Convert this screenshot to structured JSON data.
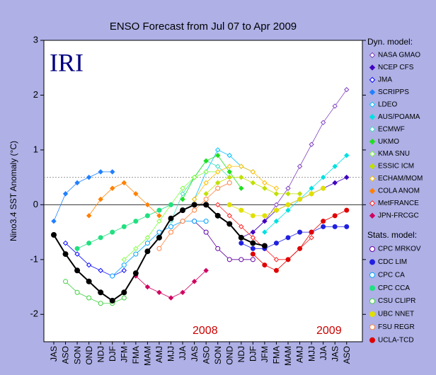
{
  "chart_data": {
    "type": "line",
    "title": "ENSO Forecast from Jul 07 to Apr 2009",
    "y_label": "Nino3.4 SST Anomaly (°C)",
    "categories": [
      "JAS",
      "ASO",
      "SON",
      "OND",
      "NDJ",
      "DJF",
      "JFM",
      "FMA",
      "MAM",
      "AMJ",
      "MJJ",
      "JJA",
      "JAS",
      "ASO",
      "SON",
      "OND",
      "NDJ",
      "DJF",
      "JFM",
      "FMA",
      "MAM",
      "AMJ",
      "MJJ",
      "JJA",
      "JAS",
      "ASO"
    ],
    "ylim": [
      -2.5,
      3
    ],
    "yticks": [
      -2,
      -1,
      0,
      1,
      2,
      3
    ],
    "reference_lines": [
      {
        "value": 0.5,
        "style": "dashed"
      },
      {
        "value": 0,
        "style": "solid"
      }
    ],
    "annotations": [
      {
        "text": "IRI",
        "color": "#000080"
      },
      {
        "text": "2008",
        "color": "#cc0000"
      },
      {
        "text": "2009",
        "color": "#cc0000"
      }
    ],
    "legend_headers": [
      "Dyn. model:",
      "Stats. model:"
    ],
    "observed": {
      "color": "#000000",
      "values": [
        -0.55,
        -0.9,
        -1.2,
        -1.4,
        -1.6,
        -1.75,
        -1.6,
        -1.25,
        -0.85,
        -0.6,
        -0.25,
        -0.1,
        0.0,
        0.0,
        -0.2,
        -0.35,
        -0.6,
        -0.7,
        -0.75,
        null,
        null,
        null,
        null,
        null,
        null,
        null
      ]
    },
    "series": [
      {
        "name": "NASA GMAO",
        "color": "#8040c0",
        "marker": "open-diamond",
        "group": 0,
        "values": [
          null,
          null,
          null,
          null,
          null,
          null,
          null,
          null,
          null,
          null,
          null,
          null,
          null,
          null,
          null,
          null,
          null,
          -0.5,
          -0.3,
          0.0,
          0.3,
          0.7,
          1.1,
          1.5,
          1.8,
          2.1
        ]
      },
      {
        "name": "NCEP CFS",
        "color": "#4000c0",
        "marker": "diamond",
        "group": 0,
        "values": [
          null,
          null,
          null,
          null,
          null,
          null,
          null,
          null,
          null,
          null,
          null,
          null,
          null,
          null,
          null,
          null,
          -0.6,
          -0.5,
          -0.3,
          -0.1,
          0.0,
          0.1,
          0.2,
          0.3,
          0.4,
          0.5
        ]
      },
      {
        "name": "JMA",
        "color": "#0000ff",
        "marker": "open-diamond",
        "group": 0,
        "values": [
          null,
          -0.7,
          -0.9,
          -1.1,
          -1.2,
          -1.3,
          -1.2,
          null,
          null,
          null,
          null,
          null,
          null,
          null,
          null,
          null,
          null,
          null,
          null,
          null,
          null,
          null,
          null,
          null,
          null,
          null
        ]
      },
      {
        "name": "SCRIPPS",
        "color": "#2080ff",
        "marker": "diamond",
        "group": 0,
        "values": [
          -0.3,
          0.2,
          0.4,
          0.5,
          0.6,
          0.6,
          null,
          null,
          null,
          null,
          null,
          null,
          null,
          null,
          null,
          null,
          null,
          null,
          null,
          null,
          null,
          null,
          null,
          null,
          null,
          null
        ]
      },
      {
        "name": "LDEO",
        "color": "#00c0ff",
        "marker": "open-diamond",
        "group": 0,
        "values": [
          null,
          null,
          null,
          null,
          null,
          null,
          null,
          null,
          null,
          null,
          null,
          null,
          0.1,
          0.6,
          1.0,
          0.9,
          0.7,
          0.6,
          null,
          null,
          null,
          null,
          null,
          null,
          null,
          null
        ]
      },
      {
        "name": "AUS/POAMA",
        "color": "#00e0e0",
        "marker": "diamond",
        "group": 0,
        "values": [
          null,
          null,
          null,
          null,
          null,
          null,
          null,
          null,
          null,
          null,
          null,
          null,
          null,
          null,
          null,
          null,
          null,
          null,
          -0.5,
          -0.3,
          -0.1,
          0.1,
          0.3,
          0.5,
          0.7,
          0.9
        ]
      },
      {
        "name": "ECMWF",
        "color": "#40e0c0",
        "marker": "open-diamond",
        "group": 0,
        "values": [
          null,
          null,
          null,
          null,
          null,
          null,
          null,
          null,
          null,
          null,
          -0.3,
          0.2,
          0.5,
          0.8,
          0.7,
          0.5,
          null,
          null,
          null,
          null,
          null,
          null,
          null,
          null,
          null,
          null
        ]
      },
      {
        "name": "UKMO",
        "color": "#20e020",
        "marker": "diamond",
        "group": 0,
        "values": [
          null,
          null,
          null,
          null,
          null,
          null,
          null,
          null,
          null,
          null,
          null,
          0.1,
          0.5,
          0.8,
          0.9,
          0.6,
          0.3,
          null,
          null,
          null,
          null,
          null,
          null,
          null,
          null,
          null
        ]
      },
      {
        "name": "KMA SNU",
        "color": "#80ff40",
        "marker": "open-diamond",
        "group": 0,
        "values": [
          null,
          null,
          null,
          null,
          null,
          null,
          -1.0,
          -0.8,
          -0.6,
          -0.3,
          0.0,
          0.3,
          0.5,
          0.6,
          0.6,
          null,
          null,
          null,
          null,
          null,
          null,
          null,
          null,
          null,
          null,
          null
        ]
      },
      {
        "name": "ESSIC ICM",
        "color": "#c0e000",
        "marker": "diamond",
        "group": 0,
        "values": [
          null,
          null,
          null,
          null,
          null,
          null,
          null,
          null,
          null,
          null,
          null,
          null,
          null,
          0.2,
          0.4,
          0.5,
          0.5,
          0.4,
          0.3,
          0.2,
          0.2,
          0.2,
          null,
          null,
          null,
          null
        ]
      },
      {
        "name": "ECHAM/MOM",
        "color": "#ffc000",
        "marker": "open-diamond",
        "group": 0,
        "values": [
          null,
          null,
          null,
          null,
          null,
          null,
          null,
          null,
          null,
          null,
          null,
          null,
          0.1,
          0.4,
          0.6,
          0.7,
          0.7,
          0.6,
          0.4,
          0.3,
          null,
          null,
          null,
          null,
          null,
          null
        ]
      },
      {
        "name": "COLA ANOM",
        "color": "#ff8000",
        "marker": "diamond",
        "group": 0,
        "values": [
          null,
          null,
          null,
          -0.2,
          0.1,
          0.3,
          0.4,
          0.2,
          0.0,
          -0.2,
          null,
          null,
          null,
          null,
          null,
          null,
          null,
          null,
          null,
          null,
          null,
          null,
          null,
          null,
          null,
          null
        ]
      },
      {
        "name": "MetFRANCE",
        "color": "#ff2020",
        "marker": "open-diamond",
        "group": 0,
        "values": [
          null,
          null,
          null,
          null,
          null,
          null,
          null,
          null,
          null,
          null,
          null,
          null,
          null,
          null,
          0.0,
          -0.2,
          -0.4,
          -0.6,
          -0.8,
          -1.0,
          -1.0,
          -0.8,
          -0.6,
          null,
          null,
          null
        ]
      },
      {
        "name": "JPN-FRCGC",
        "color": "#d00060",
        "marker": "diamond",
        "group": 0,
        "values": [
          null,
          null,
          null,
          null,
          null,
          null,
          null,
          -1.3,
          -1.5,
          -1.6,
          -1.7,
          -1.6,
          -1.4,
          -1.2,
          null,
          null,
          null,
          null,
          null,
          null,
          null,
          null,
          null,
          null,
          null,
          null
        ]
      },
      {
        "name": "CPC MRKOV",
        "color": "#6000a0",
        "marker": "open-circle",
        "group": 1,
        "values": [
          null,
          null,
          null,
          null,
          null,
          null,
          null,
          null,
          null,
          null,
          null,
          null,
          -0.3,
          -0.5,
          -0.8,
          -1.0,
          -1.0,
          -1.0,
          null,
          null,
          null,
          null,
          null,
          null,
          null,
          null
        ]
      },
      {
        "name": "CDC LIM",
        "color": "#2020e0",
        "marker": "circle",
        "group": 1,
        "values": [
          null,
          null,
          null,
          null,
          null,
          null,
          null,
          null,
          null,
          null,
          null,
          null,
          null,
          null,
          null,
          null,
          -0.7,
          -0.8,
          -0.8,
          -0.7,
          -0.6,
          -0.5,
          -0.5,
          -0.4,
          -0.4,
          -0.4
        ]
      },
      {
        "name": "CPC CA",
        "color": "#00a0ff",
        "marker": "open-circle",
        "group": 1,
        "values": [
          null,
          null,
          null,
          null,
          null,
          -1.3,
          -1.1,
          -0.9,
          -0.7,
          -0.5,
          -0.4,
          -0.3,
          -0.3,
          -0.3,
          null,
          null,
          null,
          null,
          null,
          null,
          null,
          null,
          null,
          null,
          null,
          null
        ]
      },
      {
        "name": "CPC CCA",
        "color": "#20e080",
        "marker": "circle",
        "group": 1,
        "values": [
          null,
          null,
          -0.8,
          -0.7,
          -0.6,
          -0.5,
          -0.4,
          -0.3,
          -0.2,
          -0.1,
          0.0,
          null,
          null,
          null,
          null,
          null,
          null,
          null,
          null,
          null,
          null,
          null,
          null,
          null,
          null,
          null
        ]
      },
      {
        "name": "CSU CLIPR",
        "color": "#40d040",
        "marker": "open-circle",
        "group": 1,
        "values": [
          null,
          -1.4,
          -1.6,
          -1.7,
          -1.8,
          -1.8,
          -1.7,
          null,
          null,
          null,
          null,
          null,
          null,
          null,
          null,
          null,
          null,
          null,
          null,
          null,
          null,
          null,
          null,
          null,
          null,
          null
        ]
      },
      {
        "name": "UBC NNET",
        "color": "#e0e000",
        "marker": "circle",
        "group": 1,
        "values": [
          null,
          null,
          null,
          null,
          null,
          null,
          null,
          null,
          null,
          null,
          null,
          null,
          null,
          null,
          null,
          0.0,
          -0.1,
          -0.2,
          -0.2,
          -0.1,
          0.0,
          0.1,
          0.2,
          0.3,
          null,
          null
        ]
      },
      {
        "name": "FSU REGR",
        "color": "#ff8040",
        "marker": "open-circle",
        "group": 1,
        "values": [
          null,
          null,
          null,
          null,
          null,
          null,
          null,
          null,
          null,
          -0.8,
          -0.5,
          -0.3,
          -0.1,
          0.1,
          0.3,
          0.4,
          null,
          null,
          null,
          null,
          null,
          null,
          null,
          null,
          null,
          null
        ]
      },
      {
        "name": "UCLA-TCD",
        "color": "#e00000",
        "marker": "circle",
        "group": 1,
        "values": [
          null,
          null,
          null,
          null,
          null,
          null,
          null,
          null,
          null,
          null,
          null,
          null,
          null,
          null,
          null,
          null,
          null,
          -0.9,
          -1.1,
          -1.2,
          -1.0,
          -0.8,
          -0.5,
          -0.3,
          -0.2,
          -0.1
        ]
      }
    ]
  }
}
